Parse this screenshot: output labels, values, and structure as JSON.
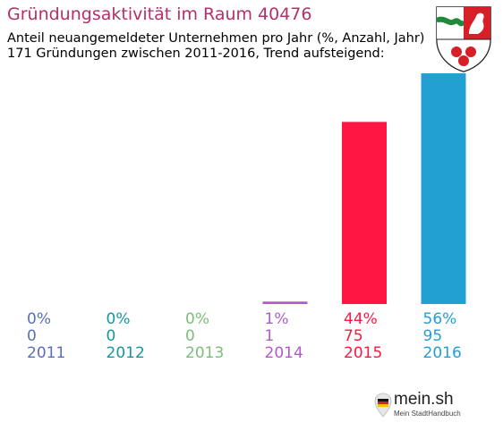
{
  "chart_data": {
    "type": "bar",
    "title": "Gründungsaktivität im Raum 40476",
    "subtitle_lines": [
      "Anteil neuangemeldeter Unternehmen pro Jahr (%, Anzahl, Jahr)",
      "171 Gründungen zwischen 2011-2016, Trend aufsteigend:"
    ],
    "categories": [
      "2011",
      "2012",
      "2013",
      "2014",
      "2015",
      "2016"
    ],
    "values": [
      0,
      0,
      0,
      1,
      75,
      95
    ],
    "percent_labels": [
      "0%",
      "0%",
      "0%",
      "1%",
      "44%",
      "56%"
    ],
    "count_labels": [
      "0",
      "0",
      "0",
      "1",
      "75",
      "95"
    ],
    "colors": [
      "#5a6fb8",
      "#1597a0",
      "#7cbd7c",
      "#b05cc8",
      "#ff1744",
      "#22a0d2"
    ],
    "grid": false,
    "legend": "none"
  },
  "logo": {
    "brand": "mein.sh",
    "tagline": "Mein StadtHandbuch"
  },
  "crest_icon": "nrw-coat-of-arms-icon",
  "logo_icon": "germany-flag-pin-icon"
}
